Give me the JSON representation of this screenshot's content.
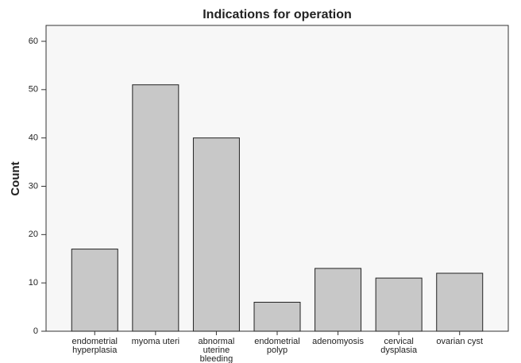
{
  "chart_data": {
    "type": "bar",
    "title": "Indications for operation",
    "y_label": "Count",
    "categories": [
      "endometrial hyperplasia",
      "myoma uteri",
      "abnormal uterine bleeding",
      "endometrial polyp",
      "adenomyosis",
      "cervical dysplasia",
      "ovarian cyst"
    ],
    "values": [
      17,
      51,
      40,
      6,
      13,
      11,
      12
    ],
    "color": "#c8c8c8",
    "ylim": [
      0,
      60
    ],
    "yticks": [
      0,
      10,
      20,
      30,
      40,
      50,
      60
    ],
    "grid": false
  }
}
